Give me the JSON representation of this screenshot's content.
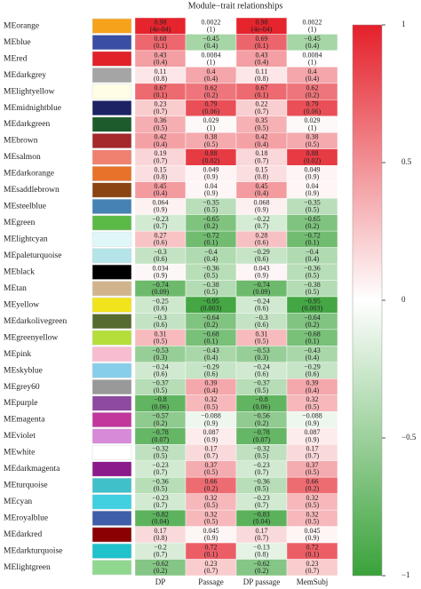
{
  "chart_data": {
    "type": "heatmap",
    "title": "Module−trait relationships",
    "categories": [
      "MEorange",
      "MEblue",
      "MEred",
      "MEdarkgrey",
      "MElightyellow",
      "MEmidnightblue",
      "MEdarkgreen",
      "MEbrown",
      "MEsalmon",
      "MEdarkorange",
      "MEsaddlebrown",
      "MEsteelblue",
      "MEgreen",
      "MElightcyan",
      "MEpaleturquoise",
      "MEblack",
      "MEtan",
      "MEyellow",
      "MEdarkolivegreen",
      "MEgreenyellow",
      "MEpink",
      "MEskyblue",
      "MEgrey60",
      "MEpurple",
      "MEmagenta",
      "MEviolet",
      "MEwhite",
      "MEdarkmagenta",
      "MEturquoise",
      "MEcyan",
      "MEroyalblue",
      "MEdarkred",
      "MEdarkturquoise",
      "MElightgreen"
    ],
    "row_colors": [
      "#f7a21b",
      "#3a4fa3",
      "#e02229",
      "#a5a5a5",
      "#fffde5",
      "#1c2264",
      "#1e5b2c",
      "#a5282a",
      "#f08070",
      "#e8722a",
      "#8b4513",
      "#4682b4",
      "#5bb948",
      "#e0f7f8",
      "#b4e4e8",
      "#000000",
      "#d2b48c",
      "#f2e41c",
      "#556b2f",
      "#b5de3a",
      "#f7bcd0",
      "#87ceeb",
      "#999999",
      "#8e4aa0",
      "#c2379c",
      "#d78ad8",
      "#ffffff",
      "#8b1a8b",
      "#40c0c8",
      "#40d0e0",
      "#3e5eaa",
      "#8b0000",
      "#20c2cc",
      "#90d890"
    ],
    "series": [
      {
        "name": "DP",
        "values": [
          0.98,
          0.68,
          0.43,
          0.11,
          0.67,
          0.23,
          0.36,
          0.42,
          0.19,
          0.15,
          0.45,
          0.064,
          -0.23,
          0.27,
          -0.3,
          0.034,
          -0.74,
          -0.25,
          -0.3,
          0.31,
          -0.53,
          -0.24,
          -0.37,
          -0.8,
          -0.57,
          -0.78,
          -0.32,
          -0.23,
          -0.36,
          -0.23,
          -0.82,
          0.17,
          -0.2,
          -0.62
        ],
        "value_labels": [
          "0.98",
          "0.68",
          "0.43",
          "0.11",
          "0.67",
          "0.23",
          "0.36",
          "0.42",
          "0.19",
          "0.15",
          "0.45",
          "0.064",
          "−0.23",
          "0.27",
          "−0.3",
          "0.034",
          "−0.74",
          "−0.25",
          "−0.3",
          "0.31",
          "−0.53",
          "−0.24",
          "−0.37",
          "−0.8",
          "−0.57",
          "−0.78",
          "−0.32",
          "−0.23",
          "−0.36",
          "−0.23",
          "−0.82",
          "0.17",
          "−0.2",
          "−0.62"
        ],
        "pvalue_labels": [
          "(4e-04)",
          "(0.1)",
          "(0.4)",
          "(0.8)",
          "(0.1)",
          "(0.7)",
          "(0.5)",
          "(0.4)",
          "(0.7)",
          "(0.8)",
          "(0.4)",
          "(0.9)",
          "(0.7)",
          "(0.6)",
          "(0.6)",
          "(0.9)",
          "(0.09)",
          "(0.6)",
          "(0.6)",
          "(0.5)",
          "(0.3)",
          "(0.6)",
          "(0.5)",
          "(0.06)",
          "(0.2)",
          "(0.07)",
          "(0.5)",
          "(0.7)",
          "(0.5)",
          "(0.7)",
          "(0.04)",
          "(0.8)",
          "(0.7)",
          "(0.2)"
        ]
      },
      {
        "name": "Passage",
        "values": [
          0.0022,
          -0.45,
          0.0084,
          0.4,
          0.62,
          0.79,
          0.029,
          0.38,
          0.88,
          0.049,
          0.04,
          -0.35,
          -0.65,
          -0.72,
          -0.4,
          -0.36,
          -0.38,
          -0.95,
          -0.64,
          -0.68,
          -0.43,
          -0.29,
          0.39,
          0.32,
          -0.088,
          0.087,
          0.17,
          0.37,
          0.66,
          0.32,
          0.32,
          0.045,
          0.72,
          0.23
        ],
        "value_labels": [
          "0.0022",
          "−0.45",
          "0.0084",
          "0.4",
          "0.62",
          "0.79",
          "0.029",
          "0.38",
          "0.88",
          "0.049",
          "0.04",
          "−0.35",
          "−0.65",
          "−0.72",
          "−0.4",
          "−0.36",
          "−0.38",
          "−0.95",
          "−0.64",
          "−0.68",
          "−0.43",
          "−0.29",
          "0.39",
          "0.32",
          "−0.088",
          "0.087",
          "0.17",
          "0.37",
          "0.66",
          "0.32",
          "0.32",
          "0.045",
          "0.72",
          "0.23"
        ],
        "pvalue_labels": [
          "(1)",
          "(0.4)",
          "(1)",
          "(0.4)",
          "(0.2)",
          "(0.06)",
          "(1)",
          "(0.5)",
          "(0.02)",
          "(0.9)",
          "(0.9)",
          "(0.5)",
          "(0.2)",
          "(0.1)",
          "(0.4)",
          "(0.5)",
          "(0.5)",
          "(0.003)",
          "(0.2)",
          "(0.1)",
          "(0.4)",
          "(0.6)",
          "(0.4)",
          "(0.5)",
          "(0.9)",
          "(0.9)",
          "(0.7)",
          "(0.5)",
          "(0.2)",
          "(0.5)",
          "(0.5)",
          "(0.9)",
          "(0.1)",
          "(0.7)"
        ]
      },
      {
        "name": "DP passage",
        "values": [
          0.98,
          0.69,
          0.43,
          0.11,
          0.67,
          0.22,
          0.35,
          0.42,
          0.18,
          0.15,
          0.45,
          0.068,
          -0.22,
          0.28,
          -0.29,
          0.043,
          -0.74,
          -0.24,
          -0.3,
          0.31,
          -0.53,
          -0.24,
          -0.37,
          -0.8,
          -0.56,
          -0.78,
          -0.32,
          -0.23,
          -0.36,
          -0.23,
          -0.83,
          0.17,
          -0.13,
          -0.62
        ],
        "value_labels": [
          "0.98",
          "0.69",
          "0.43",
          "0.11",
          "0.67",
          "0.22",
          "0.35",
          "0.42",
          "0.18",
          "0.15",
          "0.45",
          "0.068",
          "−0.22",
          "0.28",
          "−0.29",
          "0.043",
          "−0.74",
          "−0.24",
          "−0.3",
          "0.31",
          "−0.53",
          "−0.24",
          "−0.37",
          "−0.8",
          "−0.56",
          "−0.78",
          "−0.32",
          "−0.23",
          "−0.36",
          "−0.23",
          "−0.83",
          "0.17",
          "−0.13",
          "−0.62"
        ],
        "pvalue_labels": [
          "(4e-04)",
          "(0.1)",
          "(0.4)",
          "(0.8)",
          "(0.1)",
          "(0.7)",
          "(0.5)",
          "(0.4)",
          "(0.7)",
          "(0.8)",
          "(0.4)",
          "(0.9)",
          "(0.7)",
          "(0.6)",
          "(0.6)",
          "(0.9)",
          "(0.09)",
          "(0.6)",
          "(0.6)",
          "(0.5)",
          "(0.3)",
          "(0.6)",
          "(0.5)",
          "(0.06)",
          "(0.2)",
          "(0.07)",
          "(0.5)",
          "(0.7)",
          "(0.5)",
          "(0.7)",
          "(0.04)",
          "(0.7)",
          "(0.8)",
          "(0.2)"
        ]
      },
      {
        "name": "MemSubj",
        "values": [
          0.0022,
          -0.45,
          0.0084,
          0.4,
          0.62,
          0.79,
          0.029,
          0.38,
          0.88,
          0.049,
          0.04,
          -0.35,
          -0.65,
          -0.72,
          -0.4,
          -0.36,
          -0.38,
          -0.95,
          -0.64,
          -0.68,
          -0.43,
          -0.29,
          0.39,
          0.32,
          -0.088,
          0.087,
          0.17,
          0.37,
          0.66,
          0.32,
          0.32,
          0.045,
          0.72,
          0.23
        ],
        "value_labels": [
          "0.0022",
          "−0.45",
          "0.0084",
          "0.4",
          "0.62",
          "0.79",
          "0.029",
          "0.38",
          "0.88",
          "0.049",
          "0.04",
          "−0.35",
          "−0.65",
          "−0.72",
          "−0.4",
          "−0.36",
          "−0.38",
          "−0.95",
          "−0.64",
          "−0.68",
          "−0.43",
          "−0.29",
          "0.39",
          "0.32",
          "−0.088",
          "0.087",
          "0.17",
          "0.37",
          "0.66",
          "0.32",
          "0.32",
          "0.045",
          "0.72",
          "0.23"
        ],
        "pvalue_labels": [
          "(1)",
          "(0.4)",
          "(1)",
          "(0.4)",
          "(0.2)",
          "(0.06)",
          "(1)",
          "(0.5)",
          "(0.02)",
          "(0.9)",
          "(0.9)",
          "(0.5)",
          "(0.2)",
          "(0.1)",
          "(0.4)",
          "(0.5)",
          "(0.5)",
          "(0.003)",
          "(0.2)",
          "(0.1)",
          "(0.4)",
          "(0.6)",
          "(0.4)",
          "(0.5)",
          "(0.9)",
          "(0.9)",
          "(0.7)",
          "(0.5)",
          "(0.2)",
          "(0.5)",
          "(0.5)",
          "(0.9)",
          "(0.1)",
          "(0.7)"
        ]
      }
    ],
    "zlim": [
      -1,
      1
    ],
    "zticks": [
      1,
      0.5,
      0,
      {
        "value": -0.5,
        "label": "−0.5"
      },
      {
        "value": -1,
        "label": "−1"
      }
    ],
    "colormap": [
      "#3aa23a",
      "#ffffff",
      "#e4202a"
    ]
  }
}
